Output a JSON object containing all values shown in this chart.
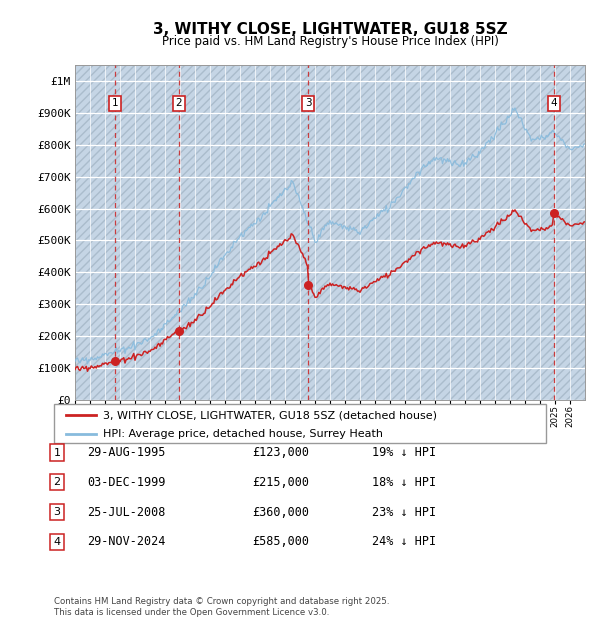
{
  "title": "3, WITHY CLOSE, LIGHTWATER, GU18 5SZ",
  "subtitle": "Price paid vs. HM Land Registry's House Price Index (HPI)",
  "ylabel_ticks": [
    "£0",
    "£100K",
    "£200K",
    "£300K",
    "£400K",
    "£500K",
    "£600K",
    "£700K",
    "£800K",
    "£900K",
    "£1M"
  ],
  "ytick_values": [
    0,
    100000,
    200000,
    300000,
    400000,
    500000,
    600000,
    700000,
    800000,
    900000,
    1000000
  ],
  "ylim": [
    0,
    1050000
  ],
  "xlim_start": 1993.0,
  "xlim_end": 2027.0,
  "plot_bg": "#dce8f5",
  "hatch_color": "#c5d5e5",
  "sale_color": "#cc2222",
  "hpi_color": "#88bbdd",
  "dashed_color": "#cc2222",
  "transactions": [
    {
      "num": 1,
      "year": 1995.66,
      "price": 123000
    },
    {
      "num": 2,
      "year": 1999.92,
      "price": 215000
    },
    {
      "num": 3,
      "year": 2008.56,
      "price": 360000
    },
    {
      "num": 4,
      "year": 2024.91,
      "price": 585000
    }
  ],
  "legend_label1": "3, WITHY CLOSE, LIGHTWATER, GU18 5SZ (detached house)",
  "legend_label2": "HPI: Average price, detached house, Surrey Heath",
  "footer": "Contains HM Land Registry data © Crown copyright and database right 2025.\nThis data is licensed under the Open Government Licence v3.0.",
  "table_rows": [
    {
      "num": 1,
      "date": "29-AUG-1995",
      "price": "£123,000",
      "pct": "19% ↓ HPI"
    },
    {
      "num": 2,
      "date": "03-DEC-1999",
      "price": "£215,000",
      "pct": "18% ↓ HPI"
    },
    {
      "num": 3,
      "date": "25-JUL-2008",
      "price": "£360,000",
      "pct": "23% ↓ HPI"
    },
    {
      "num": 4,
      "date": "29-NOV-2024",
      "price": "£585,000",
      "pct": "24% ↓ HPI"
    }
  ]
}
